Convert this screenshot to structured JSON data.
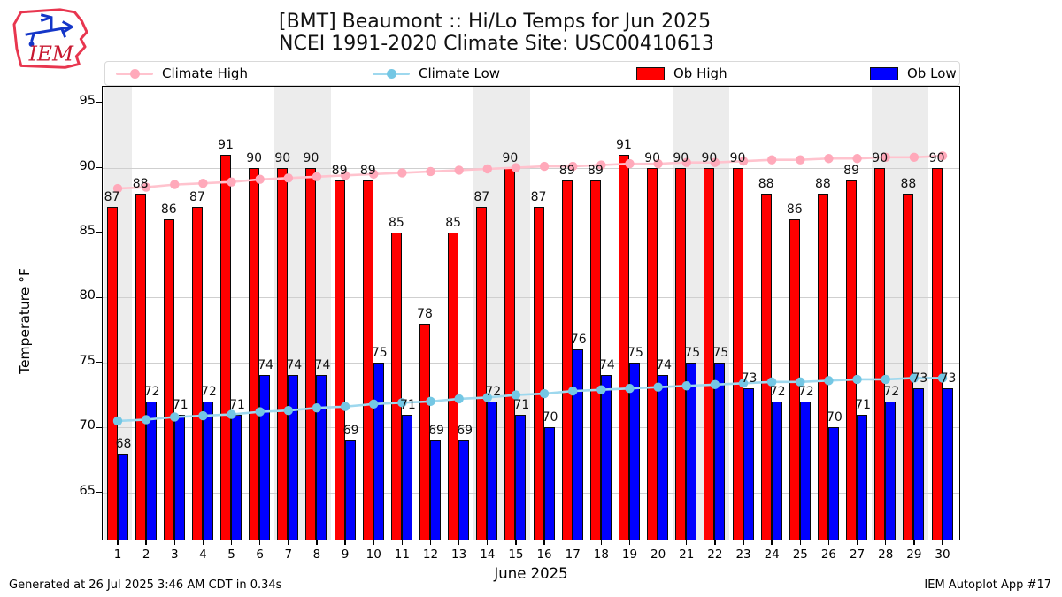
{
  "header": {
    "title_line1": "[BMT] Beaumont :: Hi/Lo Temps for Jun 2025",
    "title_line2": "NCEI 1991-2020 Climate Site: USC00410613",
    "logo_text": "IEM"
  },
  "legend": {
    "items": [
      {
        "label": "Climate High",
        "type": "line",
        "line_color": "#ffc3ce",
        "marker_color": "#ffa9ba"
      },
      {
        "label": "Climate Low",
        "type": "line",
        "line_color": "#9ed8ee",
        "marker_color": "#74c7e4"
      },
      {
        "label": "Ob High",
        "type": "swatch",
        "color": "#ff0000"
      },
      {
        "label": "Ob Low",
        "type": "swatch",
        "color": "#0000ff"
      }
    ]
  },
  "axes": {
    "ylabel": "Temperature °F",
    "xlabel": "June 2025"
  },
  "footer": {
    "left": "Generated at 26 Jul 2025 3:46 AM CDT in 0.34s",
    "right": "IEM Autoplot App #17"
  },
  "chart_data": {
    "type": "bar",
    "title": "[BMT] Beaumont :: Hi/Lo Temps for Jun 2025 — NCEI 1991-2020 Climate Site: USC00410613",
    "xlabel": "June 2025",
    "ylabel": "Temperature °F",
    "x": [
      1,
      2,
      3,
      4,
      5,
      6,
      7,
      8,
      9,
      10,
      11,
      12,
      13,
      14,
      15,
      16,
      17,
      18,
      19,
      20,
      21,
      22,
      23,
      24,
      25,
      26,
      27,
      28,
      29,
      30
    ],
    "ylim": [
      61.3,
      96.3
    ],
    "yticks": [
      65,
      70,
      75,
      80,
      85,
      90,
      95
    ],
    "grid": "horizontal",
    "legend_position": "top",
    "weekend_days": [
      1,
      7,
      8,
      14,
      15,
      21,
      22,
      28,
      29
    ],
    "series": [
      {
        "name": "Ob High",
        "type": "bar",
        "color": "#ff0000",
        "values": [
          87,
          88,
          86,
          87,
          91,
          90,
          90,
          90,
          89,
          89,
          85,
          78,
          85,
          87,
          90,
          87,
          89,
          89,
          91,
          90,
          90,
          90,
          90,
          88,
          86,
          88,
          89,
          90,
          88,
          90
        ]
      },
      {
        "name": "Ob Low",
        "type": "bar",
        "color": "#0000ff",
        "values": [
          68,
          72,
          71,
          72,
          71,
          74,
          74,
          74,
          69,
          75,
          71,
          69,
          69,
          72,
          71,
          70,
          76,
          74,
          75,
          74,
          75,
          75,
          73,
          72,
          72,
          70,
          71,
          72,
          73,
          73
        ]
      },
      {
        "name": "Climate High",
        "type": "line",
        "color": "#ffc3ce",
        "marker_color": "#ffa9ba",
        "values": [
          88.4,
          88.5,
          88.7,
          88.8,
          88.9,
          89.1,
          89.2,
          89.3,
          89.4,
          89.5,
          89.6,
          89.7,
          89.8,
          89.9,
          90.0,
          90.1,
          90.1,
          90.2,
          90.3,
          90.3,
          90.4,
          90.4,
          90.5,
          90.6,
          90.6,
          90.7,
          90.7,
          90.8,
          90.8,
          90.9
        ]
      },
      {
        "name": "Climate Low",
        "type": "line",
        "color": "#9ed8ee",
        "marker_color": "#74c7e4",
        "values": [
          70.5,
          70.6,
          70.8,
          70.9,
          71.0,
          71.2,
          71.3,
          71.5,
          71.6,
          71.8,
          71.9,
          72.0,
          72.2,
          72.3,
          72.5,
          72.6,
          72.8,
          72.9,
          73.0,
          73.1,
          73.2,
          73.3,
          73.4,
          73.5,
          73.5,
          73.6,
          73.7,
          73.7,
          73.8,
          73.8
        ]
      }
    ]
  }
}
